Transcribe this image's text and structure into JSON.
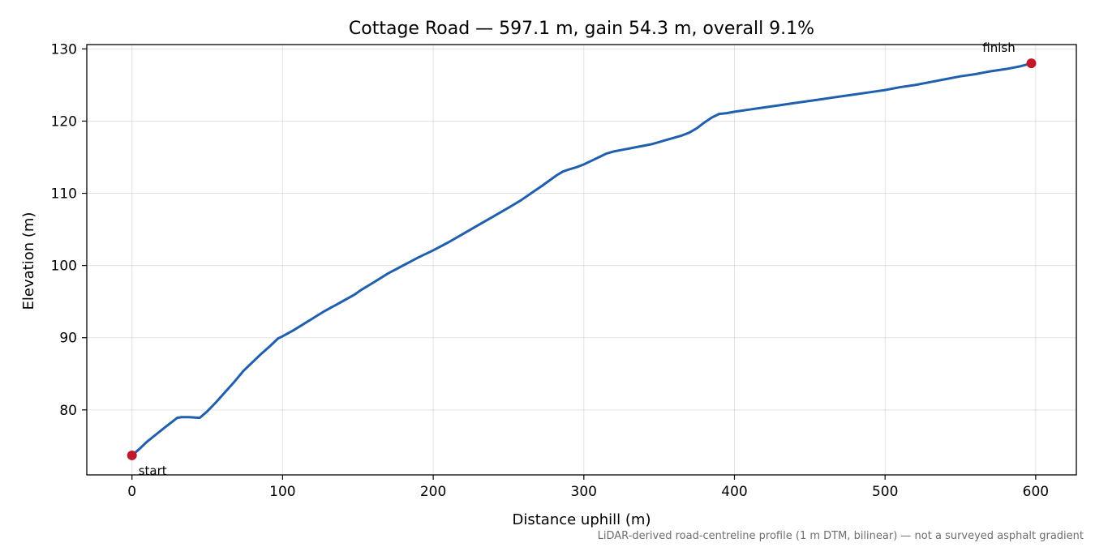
{
  "chart_data": {
    "type": "line",
    "title": "Cottage Road — 597.1 m, gain 54.3 m, overall 9.1%",
    "xlabel": "Distance uphill (m)",
    "ylabel": "Elevation (m)",
    "xlim": [
      -30,
      627
    ],
    "ylim": [
      71,
      130.6
    ],
    "xticks": [
      0,
      100,
      200,
      300,
      400,
      500,
      600
    ],
    "yticks": [
      80,
      90,
      100,
      110,
      120,
      130
    ],
    "grid": true,
    "line_color": "#1f5fae",
    "marker_color": "#c0192a",
    "series": [
      {
        "x": [
          0,
          5,
          10,
          16,
          22,
          27,
          30,
          33,
          38,
          45,
          50,
          56,
          62,
          68,
          74,
          80,
          86,
          92,
          97,
          100,
          107,
          114,
          121,
          128,
          135,
          142,
          148,
          152,
          160,
          170,
          180,
          190,
          200,
          210,
          220,
          230,
          240,
          250,
          258,
          265,
          272,
          278,
          282,
          286,
          290,
          295,
          300,
          305,
          310,
          315,
          320,
          325,
          330,
          335,
          340,
          345,
          350,
          355,
          360,
          365,
          370,
          375,
          380,
          385,
          390,
          395,
          400,
          410,
          420,
          430,
          440,
          450,
          460,
          470,
          480,
          490,
          500,
          510,
          520,
          530,
          540,
          550,
          560,
          570,
          580,
          590,
          597.1
        ],
        "y": [
          73.7,
          74.6,
          75.6,
          76.6,
          77.6,
          78.4,
          78.9,
          79.0,
          79.0,
          78.9,
          79.8,
          81.1,
          82.5,
          83.9,
          85.4,
          86.6,
          87.8,
          88.9,
          89.9,
          90.2,
          91.0,
          91.9,
          92.8,
          93.7,
          94.5,
          95.3,
          96.0,
          96.6,
          97.6,
          98.9,
          100.0,
          101.1,
          102.1,
          103.2,
          104.4,
          105.6,
          106.8,
          108.0,
          109.0,
          110.0,
          111.0,
          111.9,
          112.5,
          113.0,
          113.3,
          113.6,
          114.0,
          114.5,
          115.0,
          115.5,
          115.8,
          116.0,
          116.2,
          116.4,
          116.6,
          116.8,
          117.1,
          117.4,
          117.7,
          118.0,
          118.4,
          119.0,
          119.8,
          120.5,
          121.0,
          121.1,
          121.3,
          121.6,
          121.9,
          122.2,
          122.5,
          122.8,
          123.1,
          123.4,
          123.7,
          124.0,
          124.3,
          124.7,
          125.0,
          125.4,
          125.8,
          126.2,
          126.5,
          126.9,
          127.2,
          127.6,
          128.0
        ]
      }
    ],
    "annotations": [
      {
        "text": "start",
        "x": 0,
        "y": 73.7
      },
      {
        "text": "finish",
        "x": 597.1,
        "y": 128.0
      }
    ],
    "footnote": "LiDAR-derived road-centreline profile (1 m DTM, bilinear) — not a surveyed asphalt gradient"
  }
}
